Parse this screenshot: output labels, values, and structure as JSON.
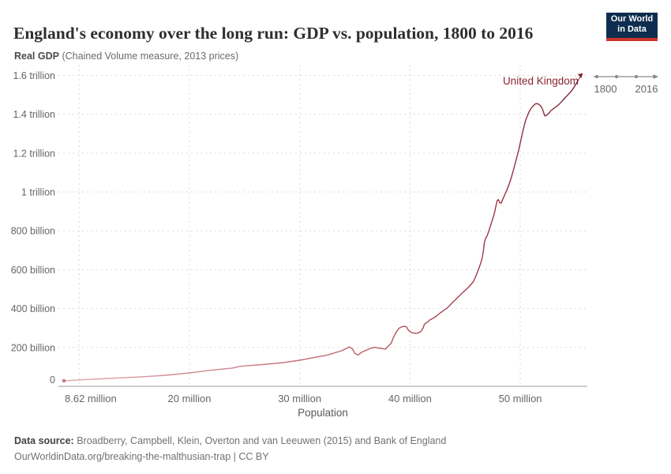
{
  "header": {
    "title": "England's economy over the long run: GDP vs. population, 1800 to 2016",
    "subtitle_bold": "Real GDP",
    "subtitle_rest": " (Chained Volume measure, 2013 prices)",
    "logo_line1": "Our World",
    "logo_line2": "in Data"
  },
  "timeline": {
    "start_label": "1800",
    "end_label": "2016"
  },
  "footer": {
    "source_label": "Data source:",
    "source_text": " Broadberry, Campbell, Klein, Overton and van Leeuwen (2015) and Bank of England",
    "citation": "OurWorldinData.org/breaking-the-malthusian-trap | CC BY"
  },
  "colors": {
    "grid": "#dadada",
    "axis": "#999999",
    "tick_text": "#666666",
    "axis_title": "#5a5a5a",
    "series_label": "#8b2332",
    "line_gradient": [
      "#dfa6ad",
      "#ce8089",
      "#b5525e",
      "#9a3343",
      "#7e2434"
    ],
    "line_gradient_offsets": [
      0,
      0.35,
      0.65,
      0.85,
      1
    ],
    "start_dot": "#c87c86",
    "timeline_gray": "#8a8a8a",
    "logo_bg": "#0f2e4f",
    "logo_stripe": "#ce342b"
  },
  "chart_data": {
    "type": "line",
    "title": "England's economy over the long run: GDP vs. population, 1800 to 2016",
    "subtitle": "Real GDP (Chained Volume measure, 2013 prices)",
    "xlabel": "Population",
    "ylabel": "Real GDP (2013 prices)",
    "series_label": "United Kingdom",
    "years_range": [
      1800,
      2016
    ],
    "x_unit": "million people",
    "y_unit": "billion GBP (2013 prices)",
    "xlim_millions": [
      8.62,
      56.5
    ],
    "ylim_billions": [
      0,
      1630
    ],
    "grid": true,
    "x_ticks": [
      {
        "value": 8.62,
        "label": "8.62 million",
        "grid": false,
        "align": "start"
      },
      {
        "value": 10,
        "label": "",
        "grid": true,
        "align": "middle"
      },
      {
        "value": 20,
        "label": "20 million",
        "grid": true,
        "align": "middle"
      },
      {
        "value": 30,
        "label": "30 million",
        "grid": true,
        "align": "middle"
      },
      {
        "value": 40,
        "label": "40 million",
        "grid": true,
        "align": "middle"
      },
      {
        "value": 50,
        "label": "50 million",
        "grid": true,
        "align": "middle"
      }
    ],
    "y_ticks": [
      {
        "value": 0,
        "label": "0"
      },
      {
        "value": 200,
        "label": "200 billion"
      },
      {
        "value": 400,
        "label": "400 billion"
      },
      {
        "value": 600,
        "label": "600 billion"
      },
      {
        "value": 800,
        "label": "800 billion"
      },
      {
        "value": 1000,
        "label": "1 trillion"
      },
      {
        "value": 1200,
        "label": "1.2 trillion"
      },
      {
        "value": 1400,
        "label": "1.4 trillion"
      },
      {
        "value": 1600,
        "label": "1.6 trillion"
      }
    ],
    "points": [
      [
        8.62,
        28
      ],
      [
        9.98,
        33
      ],
      [
        11.4,
        37
      ],
      [
        13.6,
        43
      ],
      [
        15.7,
        49
      ],
      [
        17.9,
        57
      ],
      [
        20,
        69
      ],
      [
        22,
        83
      ],
      [
        23.9,
        94
      ],
      [
        24.5,
        102
      ],
      [
        25.2,
        106
      ],
      [
        26.6,
        112
      ],
      [
        28.5,
        122
      ],
      [
        30,
        134
      ],
      [
        31.5,
        150
      ],
      [
        32.5,
        161
      ],
      [
        33.2,
        173
      ],
      [
        33.8,
        183
      ],
      [
        34.3,
        197
      ],
      [
        34.5,
        203
      ],
      [
        34.8,
        191
      ],
      [
        35,
        169
      ],
      [
        35.3,
        161
      ],
      [
        35.6,
        175
      ],
      [
        36,
        185
      ],
      [
        36.4,
        195
      ],
      [
        36.8,
        201
      ],
      [
        37.1,
        197
      ],
      [
        37.5,
        194
      ],
      [
        37.8,
        192
      ],
      [
        38,
        205
      ],
      [
        38.3,
        222
      ],
      [
        38.5,
        252
      ],
      [
        38.8,
        283
      ],
      [
        39,
        299
      ],
      [
        39.3,
        307
      ],
      [
        39.5,
        309
      ],
      [
        39.7,
        305
      ],
      [
        39.8,
        293
      ],
      [
        40,
        281
      ],
      [
        40.2,
        276
      ],
      [
        40.5,
        272
      ],
      [
        40.8,
        276
      ],
      [
        41,
        283
      ],
      [
        41.2,
        301
      ],
      [
        41.3,
        319
      ],
      [
        41.6,
        331
      ],
      [
        41.8,
        342
      ],
      [
        42.1,
        350
      ],
      [
        42.4,
        362
      ],
      [
        42.7,
        376
      ],
      [
        43,
        388
      ],
      [
        43.3,
        400
      ],
      [
        43.6,
        415
      ],
      [
        43.8,
        429
      ],
      [
        44.1,
        445
      ],
      [
        44.4,
        461
      ],
      [
        44.7,
        478
      ],
      [
        45,
        494
      ],
      [
        45.3,
        510
      ],
      [
        45.6,
        528
      ],
      [
        45.8,
        545
      ],
      [
        46,
        571
      ],
      [
        46.2,
        600
      ],
      [
        46.4,
        632
      ],
      [
        46.56,
        663
      ],
      [
        46.66,
        699
      ],
      [
        46.73,
        736
      ],
      [
        46.84,
        760
      ],
      [
        47,
        776
      ],
      [
        47.13,
        797
      ],
      [
        47.27,
        821
      ],
      [
        47.41,
        846
      ],
      [
        47.56,
        872
      ],
      [
        47.7,
        902
      ],
      [
        47.81,
        933
      ],
      [
        47.91,
        957
      ],
      [
        48.02,
        961
      ],
      [
        48.13,
        945
      ],
      [
        48.27,
        943
      ],
      [
        48.41,
        963
      ],
      [
        48.59,
        986
      ],
      [
        48.77,
        1008
      ],
      [
        48.99,
        1041
      ],
      [
        49.2,
        1077
      ],
      [
        49.42,
        1122
      ],
      [
        49.63,
        1167
      ],
      [
        49.85,
        1215
      ],
      [
        50.06,
        1268
      ],
      [
        50.2,
        1305
      ],
      [
        50.35,
        1341
      ],
      [
        50.49,
        1370
      ],
      [
        50.63,
        1390
      ],
      [
        50.78,
        1411
      ],
      [
        50.92,
        1425
      ],
      [
        51.13,
        1441
      ],
      [
        51.35,
        1453
      ],
      [
        51.49,
        1455
      ],
      [
        51.63,
        1453
      ],
      [
        51.78,
        1447
      ],
      [
        51.92,
        1437
      ],
      [
        52.06,
        1419
      ],
      [
        52.21,
        1392
      ],
      [
        52.35,
        1394
      ],
      [
        52.49,
        1400
      ],
      [
        52.64,
        1409
      ],
      [
        52.78,
        1419
      ],
      [
        52.92,
        1425
      ],
      [
        53.14,
        1435
      ],
      [
        53.35,
        1443
      ],
      [
        53.57,
        1455
      ],
      [
        53.78,
        1467
      ],
      [
        54,
        1482
      ],
      [
        54.21,
        1494
      ],
      [
        54.42,
        1506
      ],
      [
        54.64,
        1520
      ],
      [
        54.85,
        1537
      ],
      [
        55,
        1551
      ],
      [
        55.14,
        1565
      ],
      [
        55.28,
        1579
      ]
    ]
  }
}
